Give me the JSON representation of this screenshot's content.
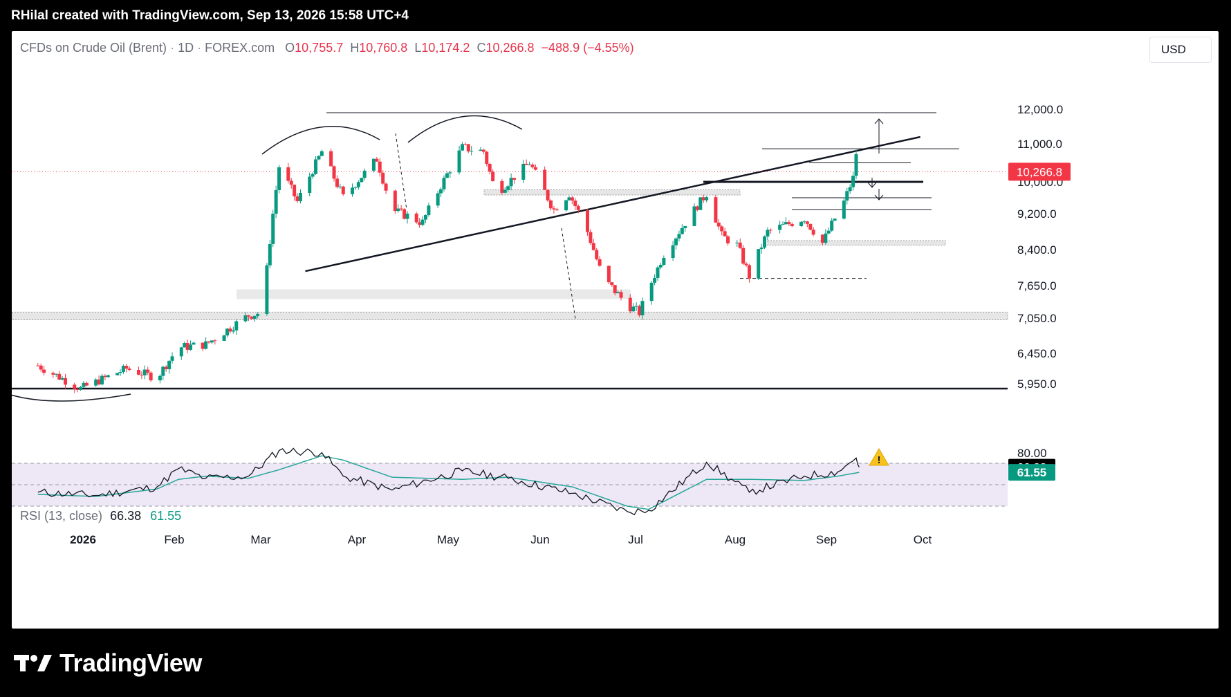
{
  "header": {
    "title": "RHilal created with TradingView.com, Sep 13, 2026 15:58 UTC+4"
  },
  "legend": {
    "symbol": "CFDs on Crude Oil (Brent)",
    "interval": "1D",
    "exchange": "FOREX.com",
    "open_label": "O",
    "open": "10,755.7",
    "high_label": "H",
    "high": "10,760.8",
    "low_label": "L",
    "low": "10,174.2",
    "close_label": "C",
    "close": "10,266.8",
    "change": "−488.9 (−4.55%)"
  },
  "currency": "USD",
  "rsi_legend": {
    "label": "RSI (13, close)",
    "rsi": "66.38",
    "ma": "61.55"
  },
  "footer": {
    "brand": "TradingView"
  },
  "colors": {
    "up": "#089981",
    "down": "#f23645",
    "rsi_line": "#131722",
    "rsi_ma": "#26a69a",
    "rsi_band": "#ede7f6",
    "warning": "#f7c21e"
  },
  "chart_data": {
    "type": "candlestick",
    "price_axis": {
      "ticks": [
        "12,000.0",
        "11,000.0",
        "10,000.0",
        "9,200.0",
        "8,400.0",
        "7,650.0",
        "7,050.0",
        "6,450.0",
        "5,950.0"
      ],
      "last_price_label": "10,266.8"
    },
    "time_axis": {
      "ticks": [
        "2026",
        "Feb",
        "Mar",
        "Apr",
        "May",
        "Jun",
        "Jul",
        "Aug",
        "Sep",
        "Oct"
      ]
    },
    "rsi_axis": {
      "ticks": [
        "80.00"
      ],
      "rsi_value_label": "66.38",
      "ma_value_label": "61.55",
      "upper_band": 70,
      "lower_band": 30
    },
    "ohlc_anchors": [
      {
        "date": "2025-12-17",
        "close": 6250
      },
      {
        "date": "2025-12-31",
        "close": 5870
      },
      {
        "date": "2026-01-15",
        "close": 6200
      },
      {
        "date": "2026-01-25",
        "close": 6050
      },
      {
        "date": "2026-02-01",
        "close": 6550
      },
      {
        "date": "2026-02-10",
        "close": 6600
      },
      {
        "date": "2026-02-24",
        "close": 7100
      },
      {
        "date": "2026-02-28",
        "close": 7150
      },
      {
        "date": "2026-03-02",
        "close": 8000
      },
      {
        "date": "2026-03-06",
        "close": 10400
      },
      {
        "date": "2026-03-12",
        "close": 9500
      },
      {
        "date": "2026-03-20",
        "close": 10800
      },
      {
        "date": "2026-03-27",
        "close": 9600
      },
      {
        "date": "2026-04-07",
        "close": 10600
      },
      {
        "date": "2026-04-12",
        "close": 9300
      },
      {
        "date": "2026-04-22",
        "close": 9000
      },
      {
        "date": "2026-04-30",
        "close": 10200
      },
      {
        "date": "2026-05-05",
        "close": 10900
      },
      {
        "date": "2026-05-12",
        "close": 10800
      },
      {
        "date": "2026-05-16",
        "close": 9700
      },
      {
        "date": "2026-05-27",
        "close": 10500
      },
      {
        "date": "2026-06-04",
        "close": 9300
      },
      {
        "date": "2026-06-09",
        "close": 9700
      },
      {
        "date": "2026-06-15",
        "close": 8800
      },
      {
        "date": "2026-06-20",
        "close": 7800
      },
      {
        "date": "2026-06-28",
        "close": 7300
      },
      {
        "date": "2026-07-02",
        "close": 7150
      },
      {
        "date": "2026-07-10",
        "close": 8300
      },
      {
        "date": "2026-07-17",
        "close": 9000
      },
      {
        "date": "2026-07-24",
        "close": 9700
      },
      {
        "date": "2026-07-29",
        "close": 8700
      },
      {
        "date": "2026-08-03",
        "close": 8500
      },
      {
        "date": "2026-08-07",
        "close": 7850
      },
      {
        "date": "2026-08-13",
        "close": 8800
      },
      {
        "date": "2026-08-25",
        "close": 9100
      },
      {
        "date": "2026-08-31",
        "close": 8550
      },
      {
        "date": "2026-09-07",
        "close": 9500
      },
      {
        "date": "2026-09-10",
        "close": 10100
      },
      {
        "date": "2026-09-11",
        "close": 10755
      },
      {
        "date": "2026-09-12",
        "close": 10266.8
      }
    ],
    "rsi_anchors": [
      {
        "date": "2025-12-17",
        "rsi": 43,
        "ma": 41
      },
      {
        "date": "2026-01-05",
        "rsi": 40,
        "ma": 39
      },
      {
        "date": "2026-01-25",
        "rsi": 48,
        "ma": 46
      },
      {
        "date": "2026-02-01",
        "rsi": 65,
        "ma": 55
      },
      {
        "date": "2026-02-10",
        "rsi": 56,
        "ma": 58
      },
      {
        "date": "2026-02-24",
        "rsi": 58,
        "ma": 56
      },
      {
        "date": "2026-03-06",
        "rsi": 82,
        "ma": 64
      },
      {
        "date": "2026-03-20",
        "rsi": 80,
        "ma": 77
      },
      {
        "date": "2026-03-27",
        "rsi": 58,
        "ma": 73
      },
      {
        "date": "2026-04-12",
        "rsi": 45,
        "ma": 57
      },
      {
        "date": "2026-05-05",
        "rsi": 63,
        "ma": 55
      },
      {
        "date": "2026-05-20",
        "rsi": 56,
        "ma": 57
      },
      {
        "date": "2026-06-10",
        "rsi": 42,
        "ma": 48
      },
      {
        "date": "2026-06-28",
        "rsi": 25,
        "ma": 30
      },
      {
        "date": "2026-07-05",
        "rsi": 26,
        "ma": 27
      },
      {
        "date": "2026-07-24",
        "rsi": 71,
        "ma": 55
      },
      {
        "date": "2026-08-07",
        "rsi": 43,
        "ma": 55
      },
      {
        "date": "2026-08-25",
        "rsi": 58,
        "ma": 54
      },
      {
        "date": "2026-09-05",
        "rsi": 62,
        "ma": 58
      },
      {
        "date": "2026-09-11",
        "rsi": 75,
        "ma": 61
      },
      {
        "date": "2026-09-12",
        "rsi": 66.38,
        "ma": 61.55
      }
    ],
    "drawings": {
      "resistance_top": 11900,
      "neckline_from": {
        "date": "2026-03-01",
        "price": 7950
      },
      "neckline_to": {
        "date": "2026-10-02",
        "price": 11200
      },
      "horizontal_levels": [
        10000,
        10500,
        9600,
        9300,
        7800,
        5870
      ],
      "zones": [
        [
          7400,
          7580
        ],
        [
          7020,
          7160
        ],
        [
          9670,
          9800
        ],
        [
          8500,
          8600
        ]
      ]
    }
  }
}
